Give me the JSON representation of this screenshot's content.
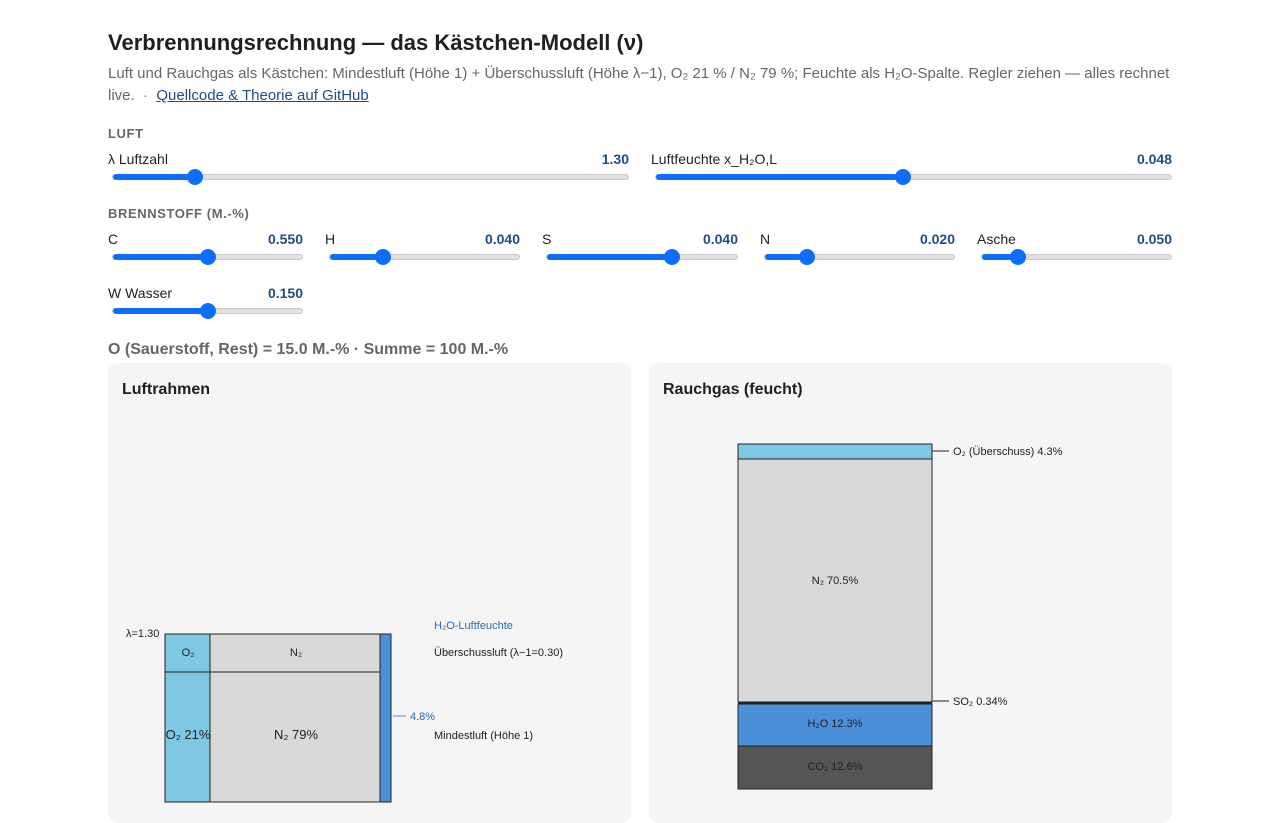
{
  "title": "Verbrennungsrechnung — das Kästchen-Modell (ν)",
  "subtitle": "Luft und Rauchgas als Kästchen: Mindestluft (Höhe 1) + Überschussluft (Höhe λ−1), O₂ 21 % / N₂ 79 %; Feuchte als H₂O-Spalte. Regler ziehen — alles rechnet live.",
  "separator": "·",
  "github_link": "Quellcode & Theorie auf GitHub",
  "sections": {
    "air": "LUFT",
    "fuel": "BRENNSTOFF (M.-%)"
  },
  "sliders": {
    "lambda": {
      "label": "λ Luftzahl",
      "value": "1.30",
      "fraction": 0.16
    },
    "humidity": {
      "label": "Luftfeuchte x_H₂O,L",
      "value": "0.048",
      "fraction": 0.48
    },
    "c": {
      "label": "C",
      "value": "0.550",
      "fraction": 0.5
    },
    "h": {
      "label": "H",
      "value": "0.040",
      "fraction": 0.28
    },
    "s": {
      "label": "S",
      "value": "0.040",
      "fraction": 0.66
    },
    "n": {
      "label": "N",
      "value": "0.020",
      "fraction": 0.22
    },
    "ash": {
      "label": "Asche",
      "value": "0.050",
      "fraction": 0.19
    },
    "w": {
      "label": "W Wasser",
      "value": "0.150",
      "fraction": 0.5
    }
  },
  "oxygen_sum": "O (Sauerstoff, Rest) = 15.0 M.-% · Summe = 100 M.-%",
  "air_panel": {
    "title": "Luftrahmen",
    "lambda_label": "λ=1.30",
    "excess_o2": "O₂",
    "excess_n2": "N₂",
    "min_o2": "O₂ 21%",
    "min_n2": "N₂ 79%",
    "humidity_title": "H₂O-Luftfeuchte",
    "humidity_value": "4.8%",
    "excess_label": "Überschussluft (λ−1=0.30)",
    "min_label": "Mindestluft (Höhe 1)",
    "colors": {
      "o2": "#7ec8e3",
      "n2": "#d9d9d9",
      "h2o": "#4a90d9"
    }
  },
  "flue_panel": {
    "title": "Rauchgas (feucht)",
    "o2": "O₂ (Überschuss) 4.3%",
    "n2": "N₂ 70.5%",
    "so2": "SO₂ 0.34%",
    "h2o": "H₂O 12.3%",
    "co2": "CO₂ 12.6%",
    "colors": {
      "o2": "#7ec8e3",
      "n2": "#d9d9d9",
      "so2": "#222222",
      "h2o": "#4a90d9",
      "co2": "#555555"
    }
  }
}
